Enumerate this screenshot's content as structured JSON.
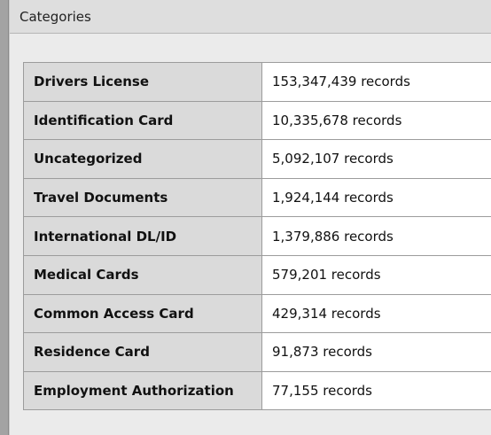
{
  "header": {
    "title": "Categories"
  },
  "table": {
    "rows": [
      [
        "Drivers License",
        "153,347,439 records"
      ],
      [
        "Identification Card",
        "10,335,678 records"
      ],
      [
        "Uncategorized",
        "5,092,107 records"
      ],
      [
        "Travel Documents",
        "1,924,144 records"
      ],
      [
        "International DL/ID",
        "1,379,886 records"
      ],
      [
        "Medical Cards",
        "579,201 records"
      ],
      [
        "Common Access Card",
        "429,314 records"
      ],
      [
        "Residence Card",
        "91,873 records"
      ],
      [
        "Employment Authorization",
        "77,155 records"
      ]
    ]
  }
}
